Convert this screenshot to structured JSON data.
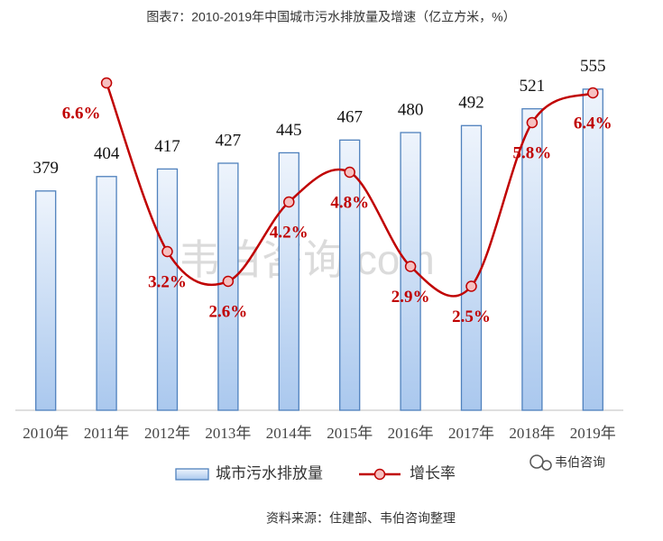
{
  "chart_data": {
    "type": "bar_line",
    "title": "图表7：2010-2019年中国城市污水排放量及增速（亿立方米，%）",
    "categories": [
      "2010年",
      "2011年",
      "2012年",
      "2013年",
      "2014年",
      "2015年",
      "2016年",
      "2017年",
      "2018年",
      "2019年"
    ],
    "series": [
      {
        "name": "城市污水排放量",
        "type": "bar",
        "color": "#4f81bd",
        "values": [
          379,
          404,
          417,
          427,
          445,
          467,
          480,
          492,
          521,
          555
        ]
      },
      {
        "name": "增长率",
        "type": "line",
        "axis": "y2",
        "color": "#c00000",
        "values": [
          null,
          6.6,
          3.2,
          2.6,
          4.2,
          4.8,
          2.9,
          2.5,
          5.8,
          6.4
        ],
        "value_labels": [
          null,
          "6.6%",
          "3.2%",
          "2.6%",
          "4.2%",
          "4.8%",
          "2.9%",
          "2.5%",
          "5.8%",
          "6.4%"
        ]
      }
    ],
    "ylim": [
      0,
      600
    ],
    "y2lim": [
      0,
      7
    ],
    "watermark": "韦伯咨询.com",
    "logo": "韦伯咨询",
    "source": "资料来源：住建部、韦伯咨询整理"
  }
}
